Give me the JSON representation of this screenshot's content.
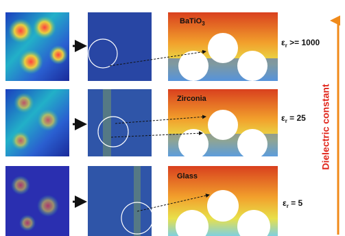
{
  "rows": [
    {
      "material": "BaTiO",
      "material_sub": "3",
      "epsilon_symbol": "ε",
      "epsilon_sub": "r",
      "epsilon_value": " >= 1000"
    },
    {
      "material": "Zirconia",
      "epsilon_symbol": "ε",
      "epsilon_sub": "r",
      "epsilon_value": " = 25"
    },
    {
      "material": "Glass",
      "epsilon_symbol": "ε",
      "epsilon_sub": "r",
      "epsilon_value": " = 5"
    }
  ],
  "axis_label": "Dielectric constant"
}
